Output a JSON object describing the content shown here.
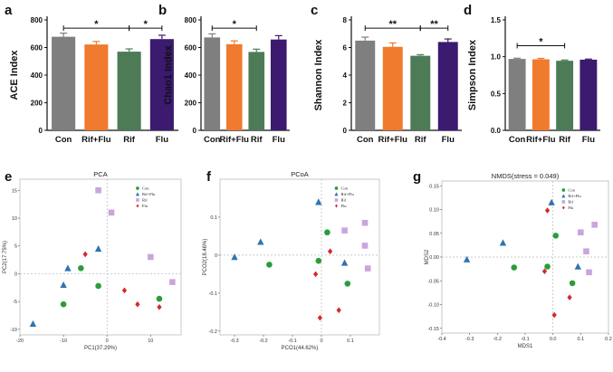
{
  "chart_data": [
    {
      "panel": "a",
      "type": "bar",
      "ylabel": "ACE Index",
      "categories": [
        "Con",
        "Rif+Flu",
        "Rif",
        "Flu"
      ],
      "values": [
        678,
        622,
        570,
        661
      ],
      "errors": [
        26,
        22,
        20,
        28
      ],
      "colors": [
        "#7f7f7f",
        "#f07a2d",
        "#4d7b56",
        "#3b1a6f"
      ],
      "ylim": [
        0,
        800
      ],
      "yticks": [
        0,
        200,
        400,
        600,
        800
      ],
      "significance": [
        {
          "from": 0,
          "to": 2,
          "y": 740,
          "label": "*"
        },
        {
          "from": 2,
          "to": 3,
          "y": 740,
          "label": "*"
        }
      ]
    },
    {
      "panel": "b",
      "type": "bar",
      "ylabel": "Chao1 Index",
      "categories": [
        "Con",
        "Rif+Flu",
        "Rif",
        "Flu"
      ],
      "values": [
        673,
        624,
        568,
        658
      ],
      "errors": [
        26,
        24,
        20,
        28
      ],
      "colors": [
        "#7f7f7f",
        "#f07a2d",
        "#4d7b56",
        "#3b1a6f"
      ],
      "ylim": [
        0,
        800
      ],
      "yticks": [
        0,
        200,
        400,
        600,
        800
      ],
      "significance": [
        {
          "from": 0,
          "to": 2,
          "y": 740,
          "label": "*"
        }
      ]
    },
    {
      "panel": "c",
      "type": "bar",
      "ylabel": "Shannon Index",
      "categories": [
        "Con",
        "Rif+Flu",
        "Rif",
        "Flu"
      ],
      "values": [
        6.5,
        6.05,
        5.4,
        6.4
      ],
      "errors": [
        0.25,
        0.28,
        0.08,
        0.22
      ],
      "colors": [
        "#7f7f7f",
        "#f07a2d",
        "#4d7b56",
        "#3b1a6f"
      ],
      "ylim": [
        0,
        8
      ],
      "yticks": [
        0,
        2,
        4,
        6,
        8
      ],
      "significance": [
        {
          "from": 0,
          "to": 2,
          "y": 7.4,
          "label": "**"
        },
        {
          "from": 2,
          "to": 3,
          "y": 7.4,
          "label": "**"
        }
      ]
    },
    {
      "panel": "d",
      "type": "bar",
      "ylabel": "Simpson Index",
      "categories": [
        "Con",
        "Rif+Flu",
        "Rif",
        "Flu"
      ],
      "values": [
        0.97,
        0.965,
        0.945,
        0.96
      ],
      "errors": [
        0.01,
        0.012,
        0.01,
        0.008
      ],
      "colors": [
        "#7f7f7f",
        "#f07a2d",
        "#4d7b56",
        "#3b1a6f"
      ],
      "ylim": [
        0,
        1.5
      ],
      "yticks": [
        0.0,
        0.5,
        1.0,
        1.5
      ],
      "ytick_labels": [
        "0.0",
        "0.5",
        "1.0",
        "1.5"
      ],
      "significance": [
        {
          "from": 0,
          "to": 2,
          "y": 1.15,
          "label": "*"
        }
      ]
    },
    {
      "panel": "e",
      "type": "scatter",
      "title": "PCA",
      "xlabel": "PC1(37.29%)",
      "ylabel": "PC2(17.75%)",
      "xlim": [
        -20,
        17
      ],
      "ylim": [
        -11,
        17
      ],
      "xticks": [
        -20,
        -10,
        0,
        10
      ],
      "yticks": [
        -10,
        -5,
        0,
        5,
        10,
        15
      ],
      "legend": [
        "Con",
        "Rif+Flu",
        "Rif",
        "Flu"
      ],
      "series": [
        {
          "name": "Con",
          "marker": "circle",
          "color": "#2a9d3a",
          "points": [
            [
              -6,
              1
            ],
            [
              -2,
              -2.2
            ],
            [
              -10,
              -5.5
            ],
            [
              12,
              -4.5
            ]
          ]
        },
        {
          "name": "Rif+Flu",
          "marker": "triangle",
          "color": "#2f74b0",
          "points": [
            [
              -2,
              4.5
            ],
            [
              -9,
              1
            ],
            [
              -10,
              -2
            ],
            [
              -17,
              -9
            ]
          ]
        },
        {
          "name": "Rif",
          "marker": "square",
          "color": "#c9a5dd",
          "points": [
            [
              -2,
              15
            ],
            [
              1,
              11
            ],
            [
              10,
              3
            ],
            [
              15,
              -1.5
            ]
          ]
        },
        {
          "name": "Flu",
          "marker": "diamond",
          "color": "#d42a2a",
          "points": [
            [
              -5,
              3.5
            ],
            [
              4,
              -3
            ],
            [
              7,
              -5.5
            ],
            [
              12,
              -6
            ]
          ]
        }
      ]
    },
    {
      "panel": "f",
      "type": "scatter",
      "title": "PCoA",
      "xlabel": "PCO1(44.62%)",
      "ylabel": "PCO2(18.46%)",
      "xlim": [
        -0.35,
        0.2
      ],
      "ylim": [
        -0.21,
        0.2
      ],
      "xticks": [
        -0.3,
        -0.2,
        -0.1,
        0.0,
        0.1
      ],
      "yticks": [
        -0.2,
        -0.1,
        0.0,
        0.1
      ],
      "xtick_labels": [
        "-0.3",
        "-0.2",
        "-0.1",
        "0",
        "0.1"
      ],
      "ytick_labels": [
        "-0.2",
        "-0.1",
        "0",
        "0.1"
      ],
      "legend": [
        "Con",
        "Rif+Flu",
        "Rif",
        "Flu"
      ],
      "series": [
        {
          "name": "Con",
          "marker": "circle",
          "color": "#2a9d3a",
          "points": [
            [
              0.02,
              0.06
            ],
            [
              -0.01,
              -0.015
            ],
            [
              -0.18,
              -0.025
            ],
            [
              0.09,
              -0.075
            ]
          ]
        },
        {
          "name": "Rif+Flu",
          "marker": "triangle",
          "color": "#2f74b0",
          "points": [
            [
              -0.01,
              0.14
            ],
            [
              -0.21,
              0.035
            ],
            [
              -0.3,
              -0.005
            ],
            [
              0.08,
              -0.02
            ]
          ]
        },
        {
          "name": "Rif",
          "marker": "square",
          "color": "#c9a5dd",
          "points": [
            [
              0.08,
              0.065
            ],
            [
              0.15,
              0.085
            ],
            [
              0.15,
              0.025
            ],
            [
              0.16,
              -0.035
            ]
          ]
        },
        {
          "name": "Flu",
          "marker": "diamond",
          "color": "#d42a2a",
          "points": [
            [
              0.03,
              0.01
            ],
            [
              -0.02,
              -0.05
            ],
            [
              0.06,
              -0.145
            ],
            [
              -0.005,
              -0.165
            ]
          ]
        }
      ]
    },
    {
      "panel": "g",
      "type": "scatter",
      "title": "NMDS(stress = 0.049)",
      "xlabel": "MDS1",
      "ylabel": "MDS2",
      "xlim": [
        -0.4,
        0.2
      ],
      "ylim": [
        -0.16,
        0.16
      ],
      "xticks": [
        -0.4,
        -0.3,
        -0.2,
        -0.1,
        0.0,
        0.1,
        0.2
      ],
      "yticks": [
        -0.15,
        -0.1,
        -0.05,
        0.0,
        0.05,
        0.1,
        0.15
      ],
      "xtick_labels": [
        "-0.4",
        "-0.3",
        "-0.2",
        "-0.1",
        "0.0",
        "0.1",
        "0.2"
      ],
      "ytick_labels": [
        "-0.15",
        "-0.10",
        "-0.05",
        "0.00",
        "0.05",
        "0.10",
        "0.15"
      ],
      "legend": [
        "Con",
        "Rif+Flu",
        "Rif",
        "Flu"
      ],
      "series": [
        {
          "name": "Con",
          "marker": "circle",
          "color": "#2a9d3a",
          "points": [
            [
              0.01,
              0.045
            ],
            [
              -0.02,
              -0.02
            ],
            [
              -0.14,
              -0.022
            ],
            [
              0.07,
              -0.055
            ]
          ]
        },
        {
          "name": "Rif+Flu",
          "marker": "triangle",
          "color": "#2f74b0",
          "points": [
            [
              -0.005,
              0.115
            ],
            [
              -0.18,
              0.03
            ],
            [
              -0.31,
              -0.005
            ],
            [
              0.09,
              -0.02
            ]
          ]
        },
        {
          "name": "Rif",
          "marker": "square",
          "color": "#c9a5dd",
          "points": [
            [
              0.1,
              0.052
            ],
            [
              0.15,
              0.068
            ],
            [
              0.12,
              0.012
            ],
            [
              0.13,
              -0.032
            ]
          ]
        },
        {
          "name": "Flu",
          "marker": "diamond",
          "color": "#d42a2a",
          "points": [
            [
              -0.02,
              0.098
            ],
            [
              -0.03,
              -0.03
            ],
            [
              0.06,
              -0.085
            ],
            [
              0.005,
              -0.122
            ]
          ]
        }
      ]
    }
  ]
}
